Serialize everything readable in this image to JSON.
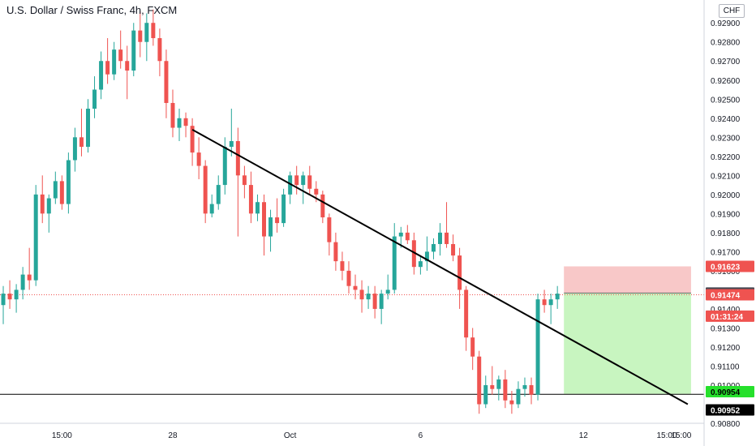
{
  "header": {
    "title": "U.S. Dollar / Swiss Franc, 4h, FXCM",
    "currency": "CHF"
  },
  "colors": {
    "bull": "#26a69a",
    "bear": "#ef5350",
    "stop_zone": "#f8c8c8",
    "target_zone": "#c8f5c0",
    "trendline": "#000000"
  },
  "chart_data": {
    "type": "candlestick",
    "ylim": [
      0.908,
      0.9302
    ],
    "y_ticks": [
      "0.90800",
      "0.91000",
      "0.91100",
      "0.91200",
      "0.91300",
      "0.91400",
      "0.91500",
      "0.91600",
      "0.91700",
      "0.91800",
      "0.91900",
      "0.92000",
      "0.92100",
      "0.92200",
      "0.92300",
      "0.92400",
      "0.92500",
      "0.92600",
      "0.92700",
      "0.92800",
      "0.92900"
    ],
    "x_ticks": [
      "15:00",
      "28",
      "Oct",
      "6",
      "12",
      "15:00",
      "19",
      "15:00"
    ],
    "ohlc": [
      [
        0.9142,
        0.9152,
        0.9132,
        0.9148
      ],
      [
        0.9148,
        0.9155,
        0.914,
        0.9145
      ],
      [
        0.9145,
        0.9153,
        0.9138,
        0.915
      ],
      [
        0.915,
        0.9162,
        0.9145,
        0.9158
      ],
      [
        0.9158,
        0.9172,
        0.915,
        0.9155
      ],
      [
        0.9155,
        0.9205,
        0.9152,
        0.92
      ],
      [
        0.92,
        0.921,
        0.9185,
        0.919
      ],
      [
        0.919,
        0.92,
        0.918,
        0.9198
      ],
      [
        0.9198,
        0.9212,
        0.9195,
        0.9207
      ],
      [
        0.9207,
        0.921,
        0.9192,
        0.9195
      ],
      [
        0.9195,
        0.9222,
        0.919,
        0.9218
      ],
      [
        0.9218,
        0.9235,
        0.9212,
        0.923
      ],
      [
        0.923,
        0.9245,
        0.922,
        0.9225
      ],
      [
        0.9225,
        0.925,
        0.9222,
        0.9245
      ],
      [
        0.9245,
        0.9262,
        0.924,
        0.9255
      ],
      [
        0.9255,
        0.9275,
        0.925,
        0.927
      ],
      [
        0.927,
        0.9282,
        0.9258,
        0.9263
      ],
      [
        0.9263,
        0.928,
        0.926,
        0.9276
      ],
      [
        0.9276,
        0.9286,
        0.9266,
        0.927
      ],
      [
        0.927,
        0.9278,
        0.925,
        0.9265
      ],
      [
        0.9265,
        0.929,
        0.9262,
        0.9286
      ],
      [
        0.9286,
        0.9296,
        0.9272,
        0.928
      ],
      [
        0.928,
        0.9295,
        0.927,
        0.929
      ],
      [
        0.929,
        0.9297,
        0.9278,
        0.9282
      ],
      [
        0.9282,
        0.9287,
        0.9262,
        0.927
      ],
      [
        0.927,
        0.9276,
        0.924,
        0.9248
      ],
      [
        0.9248,
        0.9255,
        0.923,
        0.9235
      ],
      [
        0.9235,
        0.9245,
        0.9228,
        0.924
      ],
      [
        0.924,
        0.9243,
        0.923,
        0.9236
      ],
      [
        0.9236,
        0.924,
        0.9215,
        0.9222
      ],
      [
        0.9222,
        0.923,
        0.9208,
        0.9215
      ],
      [
        0.9215,
        0.9218,
        0.9185,
        0.919
      ],
      [
        0.919,
        0.92,
        0.9188,
        0.9195
      ],
      [
        0.9195,
        0.921,
        0.9192,
        0.9205
      ],
      [
        0.9205,
        0.923,
        0.92,
        0.9225
      ],
      [
        0.9225,
        0.9245,
        0.922,
        0.9228
      ],
      [
        0.9228,
        0.9235,
        0.9178,
        0.921
      ],
      [
        0.921,
        0.9215,
        0.9198,
        0.9205
      ],
      [
        0.9205,
        0.9212,
        0.9185,
        0.919
      ],
      [
        0.919,
        0.92,
        0.9186,
        0.9196
      ],
      [
        0.9196,
        0.92,
        0.9168,
        0.9178
      ],
      [
        0.9178,
        0.9192,
        0.917,
        0.9188
      ],
      [
        0.9188,
        0.9198,
        0.918,
        0.9185
      ],
      [
        0.9185,
        0.9203,
        0.9183,
        0.92
      ],
      [
        0.92,
        0.9212,
        0.9195,
        0.921
      ],
      [
        0.921,
        0.9215,
        0.92,
        0.9205
      ],
      [
        0.9205,
        0.9212,
        0.9195,
        0.921
      ],
      [
        0.921,
        0.9215,
        0.92,
        0.9203
      ],
      [
        0.9203,
        0.9207,
        0.9196,
        0.92
      ],
      [
        0.92,
        0.9202,
        0.9185,
        0.9188
      ],
      [
        0.9188,
        0.919,
        0.9168,
        0.9175
      ],
      [
        0.9175,
        0.918,
        0.916,
        0.9165
      ],
      [
        0.9165,
        0.917,
        0.9155,
        0.916
      ],
      [
        0.916,
        0.9165,
        0.9148,
        0.9152
      ],
      [
        0.9152,
        0.9158,
        0.9145,
        0.915
      ],
      [
        0.915,
        0.9155,
        0.9138,
        0.9145
      ],
      [
        0.9145,
        0.9152,
        0.914,
        0.9148
      ],
      [
        0.9148,
        0.9152,
        0.9135,
        0.914
      ],
      [
        0.914,
        0.915,
        0.9132,
        0.9148
      ],
      [
        0.9148,
        0.9158,
        0.9145,
        0.915
      ],
      [
        0.915,
        0.9185,
        0.9148,
        0.9178
      ],
      [
        0.9178,
        0.9183,
        0.9172,
        0.918
      ],
      [
        0.918,
        0.9184,
        0.9174,
        0.9176
      ],
      [
        0.9176,
        0.918,
        0.9158,
        0.9162
      ],
      [
        0.9162,
        0.9168,
        0.9158,
        0.9165
      ],
      [
        0.9165,
        0.9178,
        0.916,
        0.917
      ],
      [
        0.917,
        0.9177,
        0.9166,
        0.9174
      ],
      [
        0.9174,
        0.9185,
        0.9168,
        0.918
      ],
      [
        0.918,
        0.9196,
        0.9172,
        0.9174
      ],
      [
        0.9174,
        0.9179,
        0.9165,
        0.9168
      ],
      [
        0.9168,
        0.9172,
        0.914,
        0.915
      ],
      [
        0.915,
        0.9152,
        0.9118,
        0.9125
      ],
      [
        0.9125,
        0.913,
        0.9108,
        0.9115
      ],
      [
        0.9115,
        0.9118,
        0.9085,
        0.909
      ],
      [
        0.909,
        0.9105,
        0.9088,
        0.91
      ],
      [
        0.91,
        0.911,
        0.9095,
        0.9098
      ],
      [
        0.9098,
        0.9105,
        0.9092,
        0.9103
      ],
      [
        0.9103,
        0.9108,
        0.9088,
        0.9092
      ],
      [
        0.9092,
        0.9097,
        0.9085,
        0.909
      ],
      [
        0.909,
        0.9102,
        0.9088,
        0.9098
      ],
      [
        0.9098,
        0.9104,
        0.9094,
        0.91
      ],
      [
        0.91,
        0.9104,
        0.909,
        0.9095
      ],
      [
        0.9095,
        0.9148,
        0.9092,
        0.9145
      ],
      [
        0.9145,
        0.915,
        0.9138,
        0.9142
      ],
      [
        0.9142,
        0.9148,
        0.9132,
        0.9145
      ],
      [
        0.9145,
        0.9152,
        0.914,
        0.9148
      ]
    ],
    "trendline": {
      "from": [
        0.9234,
        29
      ],
      "to": [
        0.909,
        105
      ]
    },
    "horizontal_line": 0.90952,
    "current_price_line": 0.91474,
    "position": {
      "type": "short",
      "entry": 0.91483,
      "stop": 0.91623,
      "target": 0.90954,
      "start_index": 86,
      "end_index": 105
    },
    "price_labels": [
      {
        "value": "0.91623",
        "price": 0.91623,
        "bg": "#ef5350",
        "fg": "#ffffff"
      },
      {
        "value": "0.91483",
        "price": 0.91483,
        "bg": "#434651",
        "fg": "#ffffff"
      },
      {
        "value": "0.91474",
        "price": 0.91474,
        "bg": "#ef5350",
        "fg": "#ffffff"
      },
      {
        "value": "01:31:24",
        "price": 0.91362,
        "bg": "#ef5350",
        "fg": "#ffffff"
      },
      {
        "value": "0.90954",
        "price": 0.90966,
        "bg": "#26e02c",
        "fg": "#000000"
      },
      {
        "value": "0.90952",
        "price": 0.9087,
        "bg": "#000000",
        "fg": "#ffffff"
      }
    ]
  }
}
